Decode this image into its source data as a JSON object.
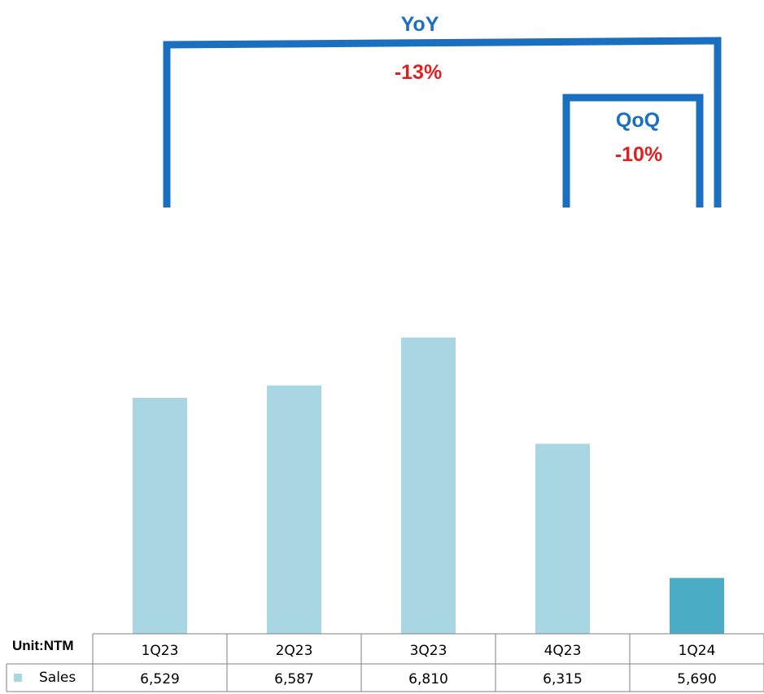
{
  "chart_data": {
    "type": "bar",
    "categories": [
      "1Q23",
      "2Q23",
      "3Q23",
      "4Q23",
      "1Q24"
    ],
    "series": [
      {
        "name": "Sales",
        "values": [
          6529,
          6587,
          6810,
          6315,
          5690
        ]
      }
    ],
    "unit_label": "Unit:NTM",
    "value_labels": [
      "6,529",
      "6,587",
      "6,810",
      "6,315",
      "5,690"
    ],
    "ylim": [
      5430,
      6980
    ],
    "grid": false,
    "legend": "table-left",
    "colors": {
      "bar": "#a8d6e3",
      "bar_highlight": "#4bacc6",
      "legend_swatch": "#a8d6e3",
      "annotation_title": "#1a6fc0",
      "annotation_value": "#e31e1e"
    },
    "annotations": [
      {
        "label": "YoY",
        "value": "-13%",
        "from": "1Q23",
        "to": "1Q24"
      },
      {
        "label": "QoQ",
        "value": "-10%",
        "from": "4Q23",
        "to": "1Q24"
      }
    ]
  }
}
